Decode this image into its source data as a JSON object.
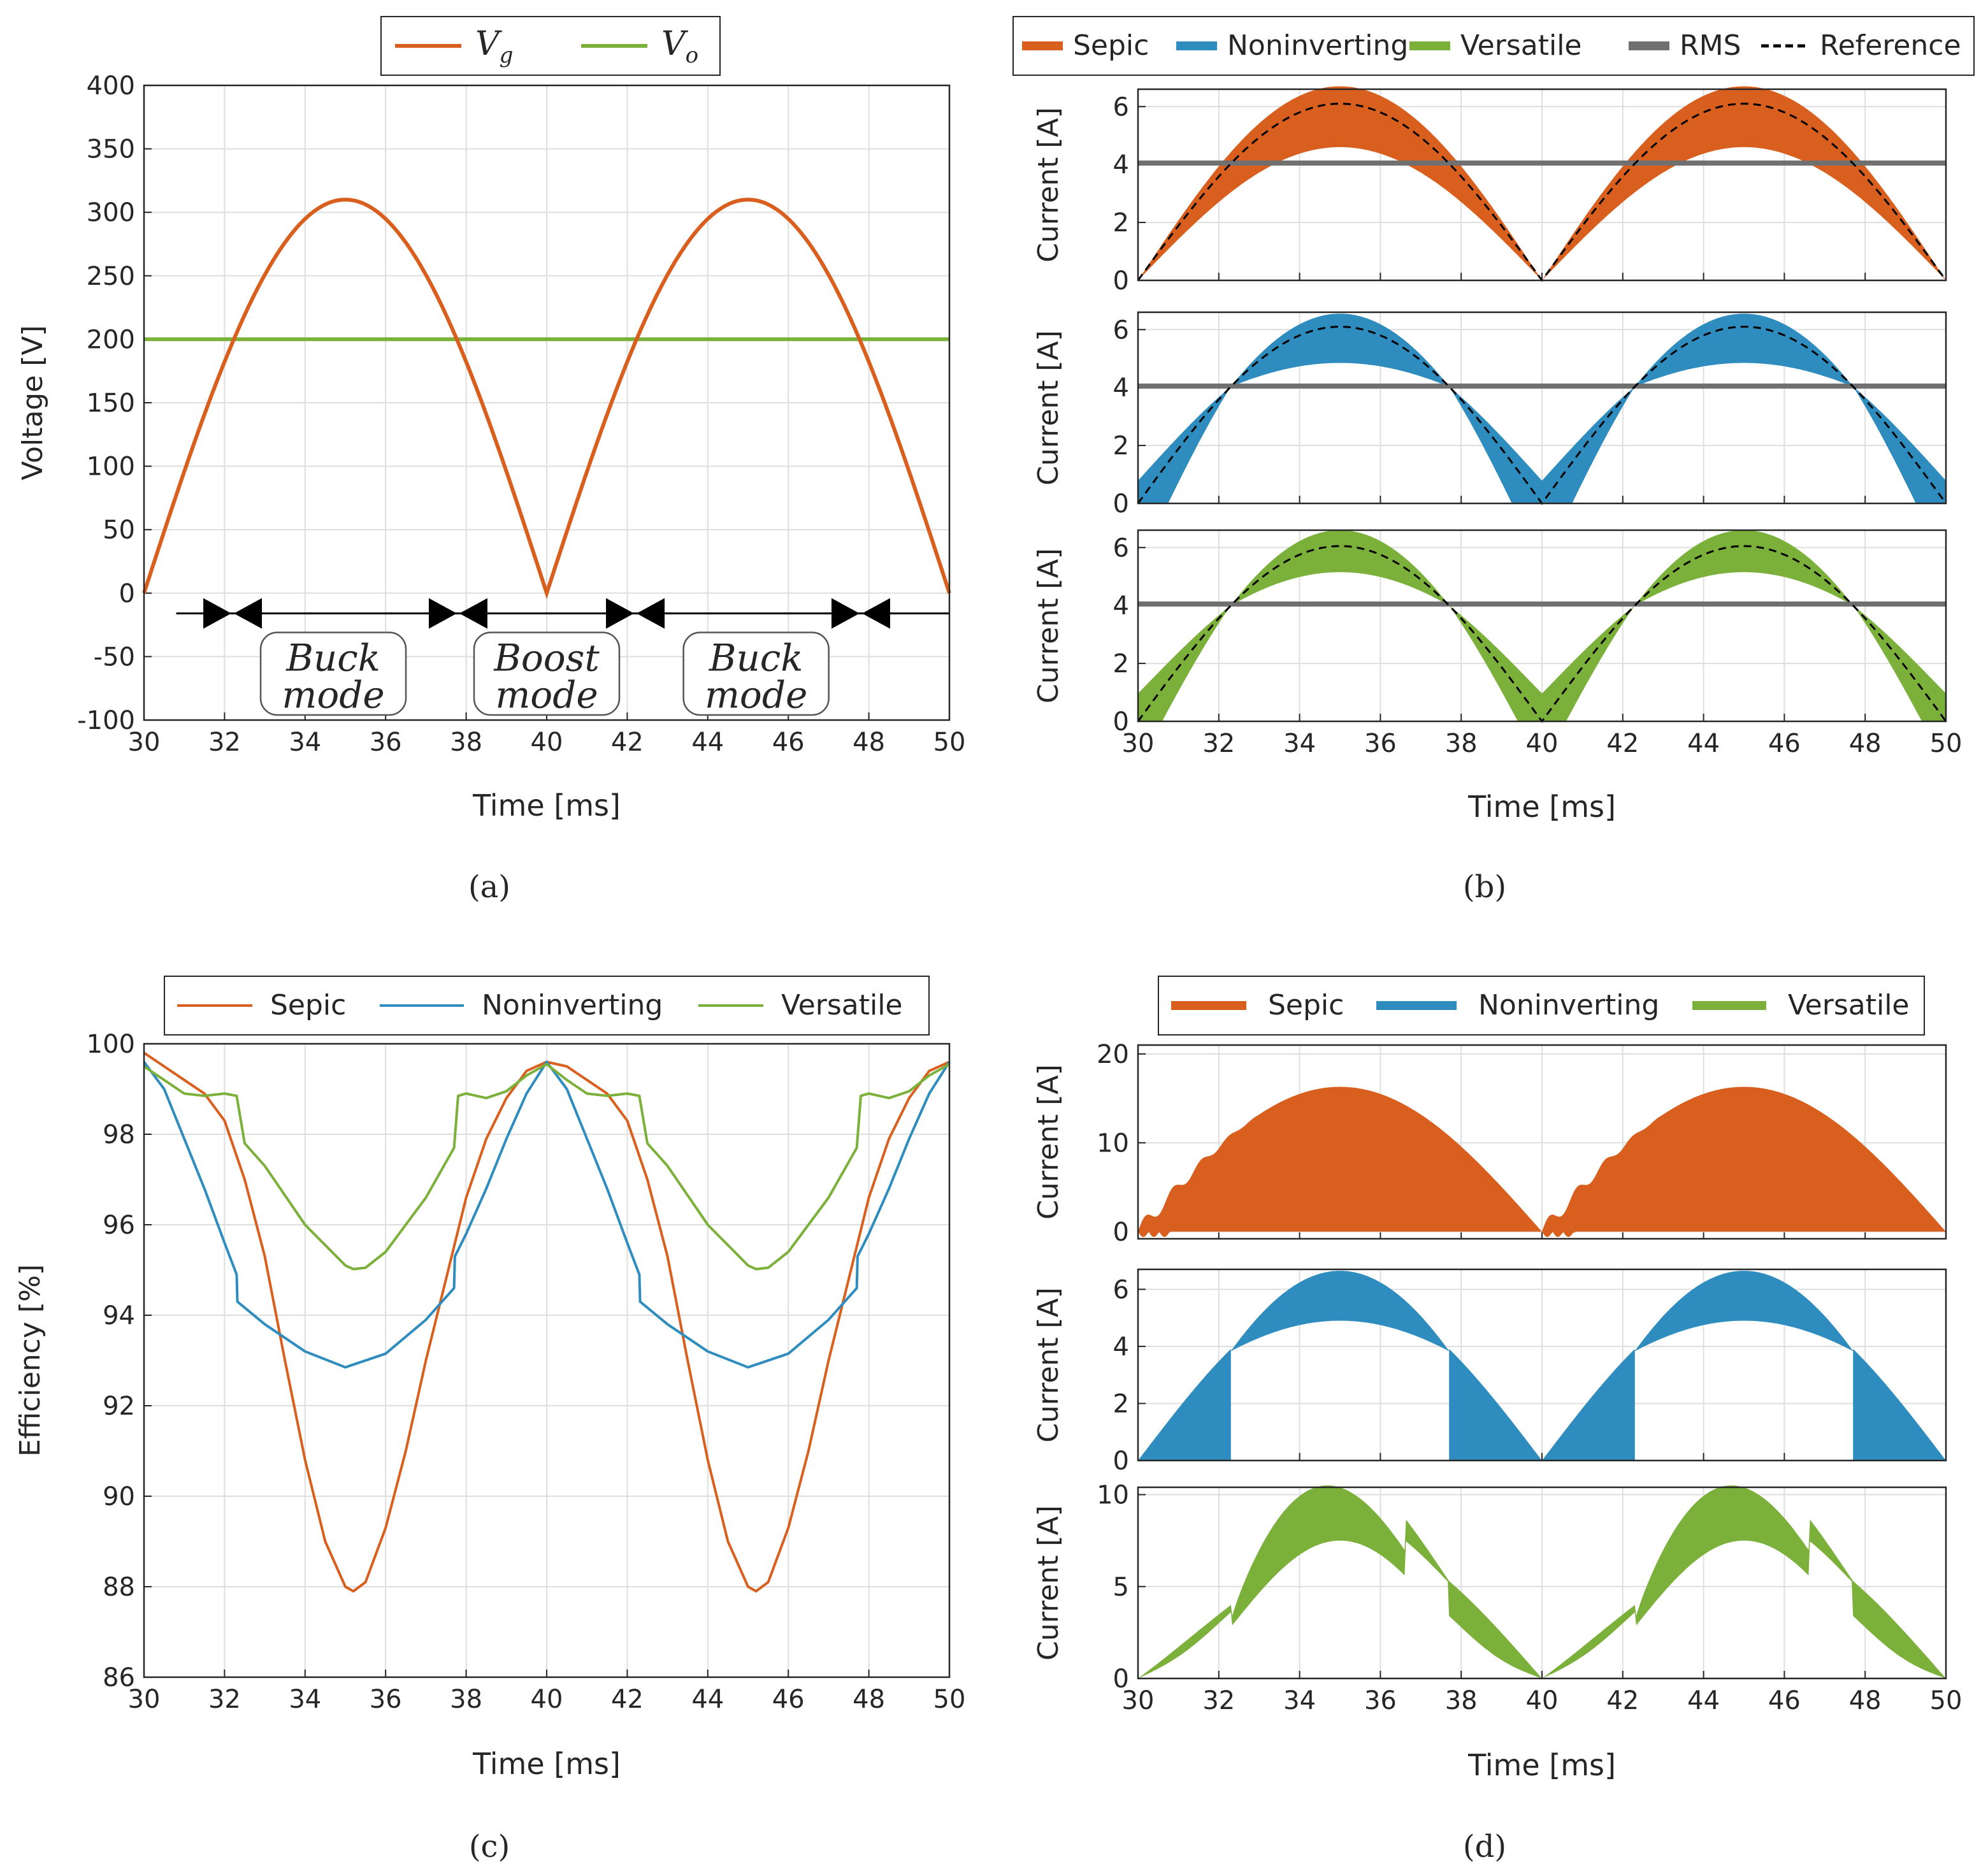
{
  "colors": {
    "sepic": "#D95F1E",
    "noninverting": "#2E8CBF",
    "versatile": "#7BB03A",
    "rms": "#707070",
    "reference": "#000000",
    "grid": "#DEDEDE",
    "axis": "#262626"
  },
  "captions": {
    "a": "(a)",
    "b": "(b)",
    "c": "(c)",
    "d": "(d)"
  },
  "chart_data": [
    {
      "id": "a",
      "type": "line",
      "title": "",
      "xlabel": "Time [ms]",
      "ylabel": "Voltage [V]",
      "xlim": [
        30,
        50
      ],
      "ylim": [
        -100,
        400
      ],
      "xticks": [
        30,
        32,
        34,
        36,
        38,
        40,
        42,
        44,
        46,
        48,
        50
      ],
      "yticks": [
        -100,
        -50,
        0,
        50,
        100,
        150,
        200,
        250,
        300,
        350,
        400
      ],
      "legend": {
        "position": "top-center",
        "entries": [
          {
            "main": "V",
            "sub": "g",
            "color": "sepic"
          },
          {
            "main": "V",
            "sub": "o",
            "color": "versatile"
          }
        ]
      },
      "series": [
        {
          "name": "Vg",
          "kind": "abs-sine",
          "amplitude": 310,
          "period_ms": 20
        },
        {
          "name": "Vo",
          "kind": "constant",
          "value": 200
        }
      ],
      "mode_marker_y": -16,
      "mode_transitions_ms": [
        32.2,
        37.8,
        42.2,
        47.8
      ],
      "modes": [
        {
          "line1": "Buck",
          "line2": "mode",
          "x_center": 34.7
        },
        {
          "line1": "Boost",
          "line2": "mode",
          "x_center": 40.0
        },
        {
          "line1": "Buck",
          "line2": "mode",
          "x_center": 45.2
        }
      ]
    },
    {
      "id": "b",
      "type": "area",
      "xlabel": "Time [ms]",
      "xlim": [
        30,
        50
      ],
      "xticks": [
        30,
        32,
        34,
        36,
        38,
        40,
        42,
        44,
        46,
        48,
        50
      ],
      "legend": {
        "position": "top",
        "entries": [
          {
            "label": "Sepic",
            "color": "sepic",
            "style": "thick"
          },
          {
            "label": "Noninverting",
            "color": "noninverting",
            "style": "thick"
          },
          {
            "label": "Versatile",
            "color": "versatile",
            "style": "thick"
          },
          {
            "label": "RMS",
            "color": "rms",
            "style": "thick"
          },
          {
            "label": "Reference",
            "color": "reference",
            "style": "dashed"
          }
        ]
      },
      "subplots": [
        {
          "converter": "Sepic",
          "ylabel": "Current [A]",
          "ylim": [
            0,
            6.6
          ],
          "yticks": [
            0,
            2,
            4,
            6
          ],
          "reference_peak": 6.1,
          "rms": 4.05,
          "band_peak": [
            4.6,
            6.7
          ],
          "band_shape": "sepic",
          "color": "sepic"
        },
        {
          "converter": "Noninverting",
          "ylabel": "Current [A]",
          "ylim": [
            0,
            6.6
          ],
          "yticks": [
            0,
            2,
            4,
            6
          ],
          "reference_peak": 6.1,
          "rms": 4.05,
          "band_peak": [
            4.85,
            6.55
          ],
          "band_shape": "lens",
          "color": "noninverting"
        },
        {
          "converter": "Versatile",
          "ylabel": "Current [A]",
          "ylim": [
            0,
            6.6
          ],
          "yticks": [
            0,
            2,
            4,
            6
          ],
          "reference_peak": 6.05,
          "rms": 4.05,
          "band_peak": [
            5.15,
            6.6
          ],
          "band_shape": "lens",
          "color": "versatile"
        }
      ]
    },
    {
      "id": "c",
      "type": "line",
      "xlabel": "Time [ms]",
      "ylabel": "Efficiency [%]",
      "xlim": [
        30,
        50
      ],
      "ylim": [
        86,
        100
      ],
      "xticks": [
        30,
        32,
        34,
        36,
        38,
        40,
        42,
        44,
        46,
        48,
        50
      ],
      "yticks": [
        86,
        88,
        90,
        92,
        94,
        96,
        98,
        100
      ],
      "legend": {
        "position": "top",
        "entries": [
          {
            "label": "Sepic",
            "color": "sepic"
          },
          {
            "label": "Noninverting",
            "color": "noninverting"
          },
          {
            "label": "Versatile",
            "color": "versatile"
          }
        ]
      },
      "series": [
        {
          "name": "Sepic",
          "color": "sepic",
          "points": [
            [
              30,
              99.8
            ],
            [
              30.5,
              99.5
            ],
            [
              31,
              99.2
            ],
            [
              31.5,
              98.9
            ],
            [
              32,
              98.3
            ],
            [
              32.5,
              97.0
            ],
            [
              33,
              95.3
            ],
            [
              33.5,
              93.0
            ],
            [
              34,
              90.8
            ],
            [
              34.5,
              89.0
            ],
            [
              35,
              88.0
            ],
            [
              35.2,
              87.9
            ],
            [
              35.5,
              88.1
            ],
            [
              36,
              89.3
            ],
            [
              36.5,
              91.0
            ],
            [
              37,
              93.0
            ],
            [
              37.5,
              94.8
            ],
            [
              38,
              96.6
            ],
            [
              38.5,
              97.9
            ],
            [
              39,
              98.8
            ],
            [
              39.5,
              99.4
            ],
            [
              40,
              99.6
            ]
          ]
        },
        {
          "name": "Noninverting",
          "color": "noninverting",
          "points": [
            [
              30,
              99.6
            ],
            [
              30.5,
              99.0
            ],
            [
              31,
              97.9
            ],
            [
              31.5,
              96.8
            ],
            [
              32,
              95.6
            ],
            [
              32.3,
              94.9
            ],
            [
              32.32,
              94.3
            ],
            [
              33,
              93.8
            ],
            [
              34,
              93.2
            ],
            [
              35,
              92.85
            ],
            [
              36,
              93.15
            ],
            [
              37,
              93.9
            ],
            [
              37.7,
              94.6
            ],
            [
              37.72,
              95.3
            ],
            [
              38,
              95.8
            ],
            [
              38.5,
              96.8
            ],
            [
              39,
              97.9
            ],
            [
              39.5,
              98.9
            ],
            [
              40,
              99.6
            ]
          ]
        },
        {
          "name": "Versatile",
          "color": "versatile",
          "points": [
            [
              30,
              99.5
            ],
            [
              30.5,
              99.2
            ],
            [
              31,
              98.9
            ],
            [
              31.5,
              98.85
            ],
            [
              32,
              98.9
            ],
            [
              32.3,
              98.85
            ],
            [
              32.5,
              97.8
            ],
            [
              33,
              97.3
            ],
            [
              34,
              96.0
            ],
            [
              35,
              95.1
            ],
            [
              35.2,
              95.02
            ],
            [
              35.5,
              95.05
            ],
            [
              36,
              95.4
            ],
            [
              37,
              96.6
            ],
            [
              37.7,
              97.7
            ],
            [
              37.8,
              98.85
            ],
            [
              38,
              98.9
            ],
            [
              38.5,
              98.8
            ],
            [
              39,
              98.95
            ],
            [
              39.5,
              99.3
            ],
            [
              40,
              99.55
            ]
          ]
        }
      ]
    },
    {
      "id": "d",
      "type": "area",
      "xlabel": "Time [ms]",
      "xlim": [
        30,
        50
      ],
      "xticks": [
        30,
        32,
        34,
        36,
        38,
        40,
        42,
        44,
        46,
        48,
        50
      ],
      "legend": {
        "position": "top",
        "entries": [
          {
            "label": "Sepic",
            "color": "sepic"
          },
          {
            "label": "Noninverting",
            "color": "noninverting"
          },
          {
            "label": "Versatile",
            "color": "versatile"
          }
        ]
      },
      "subplots": [
        {
          "converter": "Sepic",
          "ylabel": "Current [A]",
          "ylim": [
            -0.8,
            21
          ],
          "yticks": [
            0,
            10,
            20
          ],
          "peak": 16.3,
          "band_shape": "sepic-d",
          "color": "sepic"
        },
        {
          "converter": "Noninverting",
          "ylabel": "Current [A]",
          "ylim": [
            0,
            6.7
          ],
          "yticks": [
            0,
            2,
            4,
            6
          ],
          "band_peak": [
            4.9,
            6.65
          ],
          "band_shape": "gapped",
          "color": "noninverting"
        },
        {
          "converter": "Versatile",
          "ylabel": "Current [A]",
          "ylim": [
            0,
            10.4
          ],
          "yticks": [
            0,
            5,
            10
          ],
          "band_peak": [
            7.5,
            10.5
          ],
          "band_shape": "versatile-d",
          "color": "versatile"
        }
      ]
    }
  ]
}
